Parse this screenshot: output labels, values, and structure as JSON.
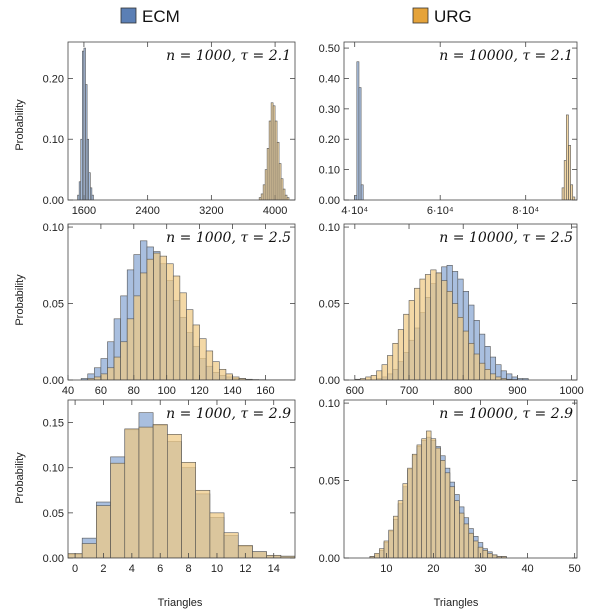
{
  "legend": {
    "items": [
      {
        "label": "ECM",
        "color": "#5b7fb5"
      },
      {
        "label": "URG",
        "color": "#e5a33a"
      }
    ]
  },
  "colors": {
    "ecm_fill": "#a9bfdf",
    "urg_fill": "#efc983",
    "overlap_fill": "#b9a57c",
    "bar_stroke": "#555555"
  },
  "axis_labels": {
    "ylabel": "Probability",
    "xlabel": "Triangles"
  },
  "chart_data": [
    {
      "type": "bar",
      "title_n": "n = 1000,",
      "title_tau": "τ = 2.1",
      "xlim": [
        1400,
        4250
      ],
      "ylim": [
        0,
        0.26
      ],
      "xticks": [
        1600,
        2400,
        3200,
        4000
      ],
      "xtick_labels": [
        "1600",
        "2400",
        "3200",
        "4000"
      ],
      "yticks": [
        0,
        0.1,
        0.2
      ],
      "ytick_labels": [
        "0.00",
        "0.10",
        "0.20"
      ],
      "series": [
        {
          "name": "ECM",
          "bin_start": 1520,
          "bin_width": 20,
          "values": [
            0.008,
            0.03,
            0.1,
            0.245,
            0.25,
            0.19,
            0.1,
            0.045,
            0.02,
            0.008
          ]
        },
        {
          "name": "URG",
          "bin_start": 3800,
          "bin_width": 25,
          "values": [
            0.004,
            0.01,
            0.025,
            0.05,
            0.085,
            0.13,
            0.16,
            0.155,
            0.13,
            0.095,
            0.06,
            0.035,
            0.018,
            0.008,
            0.004
          ]
        }
      ]
    },
    {
      "type": "bar",
      "title_n": "n = 10000,",
      "title_tau": "τ = 2.1",
      "xlim": [
        37500,
        92000
      ],
      "ylim": [
        0,
        0.52
      ],
      "xticks": [
        40000,
        60000,
        80000
      ],
      "xtick_labels": [
        "4·10⁴",
        "6·10⁴",
        "8·10⁴"
      ],
      "yticks": [
        0,
        0.1,
        0.2,
        0.3,
        0.4,
        0.5
      ],
      "ytick_labels": [
        "0.00",
        "0.10",
        "0.20",
        "0.30",
        "0.40",
        "0.50"
      ],
      "series": [
        {
          "name": "ECM",
          "bin_start": 40000,
          "bin_width": 500,
          "values": [
            0.015,
            0.455,
            0.37,
            0.05
          ]
        },
        {
          "name": "URG",
          "bin_start": 88500,
          "bin_width": 500,
          "values": [
            0.04,
            0.13,
            0.28,
            0.18,
            0.05,
            0.01
          ]
        }
      ]
    },
    {
      "type": "bar",
      "title_n": "n = 1000,",
      "title_tau": "τ = 2.5",
      "xlim": [
        40,
        178
      ],
      "ylim": [
        0,
        0.102
      ],
      "xticks": [
        40,
        60,
        80,
        100,
        120,
        140,
        160
      ],
      "xtick_labels": [
        "40",
        "60",
        "80",
        "100",
        "120",
        "140",
        "160"
      ],
      "yticks": [
        0,
        0.05,
        0.1
      ],
      "ytick_labels": [
        "0.00",
        "0.05",
        "0.10"
      ],
      "series": [
        {
          "name": "ECM",
          "bin_start": 48,
          "bin_width": 4,
          "values": [
            0.001,
            0.004,
            0.008,
            0.014,
            0.025,
            0.04,
            0.055,
            0.072,
            0.082,
            0.091,
            0.087,
            0.084,
            0.076,
            0.065,
            0.052,
            0.041,
            0.031,
            0.022,
            0.014,
            0.009,
            0.005,
            0.003,
            0.002,
            0.001,
            0.001
          ]
        },
        {
          "name": "URG",
          "bin_start": 48,
          "bin_width": 4,
          "values": [
            0.0,
            0.001,
            0.002,
            0.004,
            0.008,
            0.015,
            0.025,
            0.04,
            0.055,
            0.07,
            0.079,
            0.083,
            0.081,
            0.076,
            0.068,
            0.057,
            0.046,
            0.036,
            0.027,
            0.019,
            0.012,
            0.007,
            0.004,
            0.002,
            0.001,
            0.0005,
            0.0003,
            0.0002,
            0.0001,
            0.0001,
            0.0001,
            0.0001
          ]
        }
      ]
    },
    {
      "type": "bar",
      "title_n": "n = 10000,",
      "title_tau": "τ = 2.5",
      "xlim": [
        580,
        1010
      ],
      "ylim": [
        0,
        0.102
      ],
      "xticks": [
        600,
        700,
        800,
        900,
        1000
      ],
      "xtick_labels": [
        "600",
        "700",
        "800",
        "900",
        "1000"
      ],
      "yticks": [
        0,
        0.05,
        0.1
      ],
      "ytick_labels": [
        "0.00",
        "0.05",
        "0.10"
      ],
      "series": [
        {
          "name": "ECM",
          "bin_start": 640,
          "bin_width": 10,
          "values": [
            0.001,
            0.002,
            0.004,
            0.007,
            0.012,
            0.018,
            0.026,
            0.034,
            0.044,
            0.054,
            0.063,
            0.07,
            0.074,
            0.075,
            0.071,
            0.066,
            0.058,
            0.049,
            0.039,
            0.03,
            0.022,
            0.015,
            0.01,
            0.006,
            0.004,
            0.002,
            0.001,
            0.001
          ]
        },
        {
          "name": "URG",
          "bin_start": 600,
          "bin_width": 10,
          "values": [
            0.0005,
            0.001,
            0.002,
            0.003,
            0.006,
            0.01,
            0.016,
            0.024,
            0.033,
            0.043,
            0.052,
            0.06,
            0.066,
            0.069,
            0.072,
            0.07,
            0.065,
            0.058,
            0.05,
            0.041,
            0.032,
            0.024,
            0.017,
            0.011,
            0.007,
            0.004,
            0.002,
            0.001,
            0.0005,
            0.0003
          ]
        }
      ]
    },
    {
      "type": "bar",
      "title_n": "n = 1000,",
      "title_tau": "τ = 2.9",
      "xlim": [
        -0.5,
        15.5
      ],
      "ylim": [
        0,
        0.175
      ],
      "xticks": [
        0,
        2,
        4,
        6,
        8,
        10,
        12,
        14
      ],
      "xtick_labels": [
        "0",
        "2",
        "4",
        "6",
        "8",
        "10",
        "12",
        "14"
      ],
      "yticks": [
        0,
        0.05,
        0.1,
        0.15
      ],
      "ytick_labels": [
        "0.00",
        "0.05",
        "0.10",
        "0.15"
      ],
      "series": [
        {
          "name": "ECM",
          "bin_start": -0.5,
          "bin_width": 1,
          "values": [
            0.004,
            0.022,
            0.062,
            0.112,
            0.142,
            0.161,
            0.147,
            0.129,
            0.1,
            0.071,
            0.045,
            0.025,
            0.013,
            0.007,
            0.003,
            0.002
          ]
        },
        {
          "name": "URG",
          "bin_start": -0.5,
          "bin_width": 1,
          "values": [
            0.005,
            0.016,
            0.058,
            0.105,
            0.143,
            0.145,
            0.148,
            0.137,
            0.106,
            0.075,
            0.05,
            0.028,
            0.014,
            0.007,
            0.003,
            0.002
          ]
        }
      ]
    },
    {
      "type": "bar",
      "title_n": "n = 10000,",
      "title_tau": "τ = 2.9",
      "xlim": [
        1,
        50.5
      ],
      "ylim": [
        0,
        0.102
      ],
      "xticks": [
        10,
        20,
        30,
        40,
        50
      ],
      "xtick_labels": [
        "10",
        "20",
        "30",
        "40",
        "50"
      ],
      "yticks": [
        0,
        0.05,
        0.1
      ],
      "ytick_labels": [
        "0.00",
        "0.05",
        "0.10"
      ],
      "series": [
        {
          "name": "ECM",
          "bin_start": 6.5,
          "bin_width": 1,
          "values": [
            0.001,
            0.002,
            0.005,
            0.01,
            0.017,
            0.025,
            0.035,
            0.046,
            0.057,
            0.066,
            0.072,
            0.076,
            0.078,
            0.076,
            0.072,
            0.066,
            0.058,
            0.049,
            0.041,
            0.033,
            0.026,
            0.019,
            0.014,
            0.01,
            0.006,
            0.004,
            0.002,
            0.001,
            0.001
          ]
        },
        {
          "name": "URG",
          "bin_start": 6.5,
          "bin_width": 1,
          "values": [
            0.001,
            0.003,
            0.006,
            0.011,
            0.018,
            0.027,
            0.037,
            0.048,
            0.058,
            0.067,
            0.073,
            0.077,
            0.082,
            0.077,
            0.071,
            0.063,
            0.055,
            0.046,
            0.037,
            0.029,
            0.022,
            0.016,
            0.011,
            0.007,
            0.005,
            0.003,
            0.002,
            0.001,
            0.001
          ]
        }
      ]
    }
  ]
}
